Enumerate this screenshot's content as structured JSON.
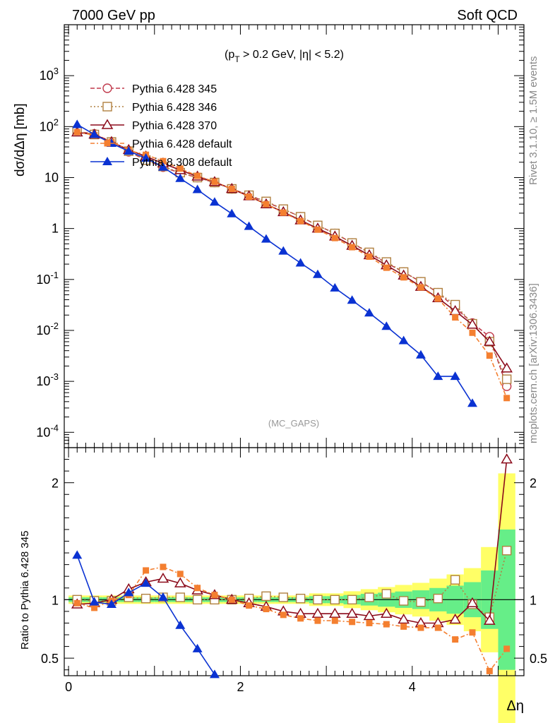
{
  "header": {
    "left_title": "7000 GeV pp",
    "right_title": "Soft QCD",
    "subtitle": "(p",
    "subtitle_sub": "T",
    "subtitle_rest": " > 0.2 GeV, |η| < 5.2)",
    "analysis_tag": "(MC_GAPS)",
    "side_text_1": "Rivet 3.1.10, ≥ 1.5M events",
    "side_text_2": "mcplots.cern.ch [arXiv:1306.3436]"
  },
  "colors": {
    "p345": "#c0394b",
    "p346": "#b08040",
    "p370": "#8b0a1a",
    "p6def": "#f47f30",
    "p8def": "#0a32d2",
    "band_green": "#66ee88",
    "band_yellow": "#ffff66"
  },
  "chart_data": [
    {
      "type": "line",
      "panel": "main",
      "ylabel": "dσ/dΔη [mb]",
      "yscale": "log",
      "ylim": [
        5e-05,
        10000
      ],
      "xlim": [
        -0.05,
        5.3
      ],
      "y_tick_labels": [
        "10^-4",
        "10^-3",
        "10^-2",
        "10^-1",
        "1",
        "10",
        "10^2",
        "10^3"
      ],
      "legend_position": "top-left",
      "x": [
        0.1,
        0.3,
        0.5,
        0.7,
        0.9,
        1.1,
        1.3,
        1.5,
        1.7,
        1.9,
        2.1,
        2.3,
        2.5,
        2.7,
        2.9,
        3.1,
        3.3,
        3.5,
        3.7,
        3.9,
        4.1,
        4.3,
        4.5,
        4.7,
        4.9,
        5.1
      ],
      "series": [
        {
          "name": "Pythia 6.428 345",
          "key": "p345",
          "marker": "circle-open",
          "dash": "6,3",
          "values": [
            80,
            72,
            50,
            32,
            22,
            16,
            12.3,
            10,
            8.0,
            6.0,
            4.5,
            3.3,
            2.4,
            1.7,
            1.15,
            0.8,
            0.52,
            0.33,
            0.21,
            0.14,
            0.09,
            0.055,
            0.028,
            0.014,
            0.0075,
            0.0008
          ]
        },
        {
          "name": "Pythia 6.428 346",
          "key": "p346",
          "marker": "square-open",
          "dash": "2,3",
          "values": [
            80,
            70,
            50,
            33,
            22,
            16.5,
            12.5,
            10,
            8.0,
            6.0,
            4.5,
            3.4,
            2.4,
            1.7,
            1.15,
            0.8,
            0.52,
            0.34,
            0.22,
            0.14,
            0.09,
            0.055,
            0.032,
            0.0135,
            0.006,
            0.0011
          ]
        },
        {
          "name": "Pythia 6.428 370",
          "key": "p370",
          "marker": "triangle-open",
          "dash": "",
          "values": [
            77,
            70,
            50,
            35,
            26,
            19,
            14,
            10.5,
            8.2,
            6.0,
            4.3,
            3.0,
            2.1,
            1.45,
            1.0,
            0.7,
            0.46,
            0.3,
            0.19,
            0.12,
            0.072,
            0.043,
            0.024,
            0.013,
            0.006,
            0.0018
          ]
        },
        {
          "name": "Pythia 6.428 default",
          "key": "p6def",
          "marker": "square",
          "dash": "6,3,2,3",
          "values": [
            78,
            68,
            50,
            34,
            28,
            21,
            15,
            10.8,
            8.3,
            6.0,
            4.2,
            3.0,
            2.05,
            1.4,
            0.95,
            0.65,
            0.43,
            0.28,
            0.17,
            0.11,
            0.07,
            0.042,
            0.018,
            0.009,
            0.0032,
            0.00047
          ]
        },
        {
          "name": "Pythia 8.308 default",
          "key": "p8def",
          "marker": "triangle",
          "dash": "",
          "values": [
            110,
            70,
            47,
            33,
            24,
            16,
            9.6,
            5.8,
            3.3,
            1.95,
            1.1,
            0.62,
            0.36,
            0.21,
            0.125,
            0.068,
            0.039,
            0.022,
            0.012,
            0.0063,
            0.0033,
            0.00125,
            0.00125,
            0.00037,
            null,
            null
          ]
        }
      ]
    },
    {
      "type": "line",
      "panel": "ratio",
      "xlabel": "Δη",
      "ylabel": "Ratio to Pythia 6.428 345",
      "ylim": [
        0.35,
        2.3
      ],
      "xlim": [
        -0.05,
        5.3
      ],
      "x_tick_labels": [
        "0",
        "2",
        "4"
      ],
      "y_tick_labels": [
        "0.5",
        "1",
        "2"
      ],
      "x": [
        0.1,
        0.3,
        0.5,
        0.7,
        0.9,
        1.1,
        1.3,
        1.5,
        1.7,
        1.9,
        2.1,
        2.3,
        2.5,
        2.7,
        2.9,
        3.1,
        3.3,
        3.5,
        3.7,
        3.9,
        4.1,
        4.3,
        4.5,
        4.7,
        4.9,
        5.1
      ],
      "series": [
        {
          "name": "Pythia 6.428 346",
          "key": "p346",
          "marker": "square-open",
          "dash": "2,3",
          "values": [
            1.0,
            0.99,
            0.99,
            1.02,
            1.01,
            1.02,
            1.02,
            1.0,
            1.0,
            1.0,
            1.01,
            1.03,
            1.02,
            1.01,
            1.0,
            1.0,
            1.0,
            1.02,
            1.05,
            0.99,
            0.98,
            1.01,
            1.17,
            0.96,
            0.85,
            1.42
          ]
        },
        {
          "name": "Pythia 6.428 370",
          "key": "p370",
          "marker": "triangle-open",
          "dash": "",
          "values": [
            0.96,
            0.97,
            1.0,
            1.09,
            1.15,
            1.18,
            1.14,
            1.08,
            1.04,
            1.0,
            0.97,
            0.94,
            0.9,
            0.88,
            0.88,
            0.88,
            0.88,
            0.86,
            0.88,
            0.83,
            0.8,
            0.8,
            0.83,
            0.97,
            0.82,
            2.2
          ]
        },
        {
          "name": "Pythia 6.428 default",
          "key": "p6def",
          "marker": "square",
          "dash": "6,3,2,3",
          "values": [
            0.97,
            0.93,
            0.99,
            1.04,
            1.25,
            1.28,
            1.22,
            1.1,
            1.04,
            1.0,
            0.95,
            0.92,
            0.87,
            0.84,
            0.82,
            0.82,
            0.81,
            0.8,
            0.79,
            0.77,
            0.76,
            0.76,
            0.66,
            0.72,
            0.39,
            0.58
          ]
        },
        {
          "name": "Pythia 8.308 default",
          "key": "p8def",
          "marker": "triangle",
          "dash": "",
          "values": [
            1.38,
            0.98,
            0.96,
            1.06,
            1.14,
            1.02,
            0.78,
            0.58,
            0.36,
            null,
            null,
            null,
            null,
            null,
            null,
            null,
            null,
            null,
            null,
            null,
            null,
            null,
            null,
            null,
            null,
            null
          ]
        }
      ]
    }
  ]
}
